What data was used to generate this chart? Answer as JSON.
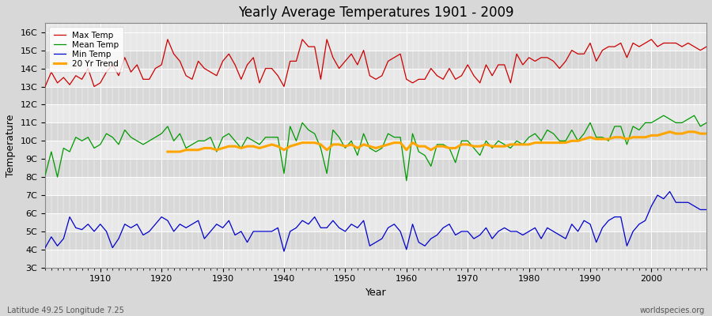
{
  "title": "Yearly Average Temperatures 1901 - 2009",
  "xlabel": "Year",
  "ylabel": "Temperature",
  "lat_lon_label": "Latitude 49.25 Longitude 7.25",
  "worldspecies_label": "worldspecies.org",
  "years": [
    1901,
    1902,
    1903,
    1904,
    1905,
    1906,
    1907,
    1908,
    1909,
    1910,
    1911,
    1912,
    1913,
    1914,
    1915,
    1916,
    1917,
    1918,
    1919,
    1920,
    1921,
    1922,
    1923,
    1924,
    1925,
    1926,
    1927,
    1928,
    1929,
    1930,
    1931,
    1932,
    1933,
    1934,
    1935,
    1936,
    1937,
    1938,
    1939,
    1940,
    1941,
    1942,
    1943,
    1944,
    1945,
    1946,
    1947,
    1948,
    1949,
    1950,
    1951,
    1952,
    1953,
    1954,
    1955,
    1956,
    1957,
    1958,
    1959,
    1960,
    1961,
    1962,
    1963,
    1964,
    1965,
    1966,
    1967,
    1968,
    1969,
    1970,
    1971,
    1972,
    1973,
    1974,
    1975,
    1976,
    1977,
    1978,
    1979,
    1980,
    1981,
    1982,
    1983,
    1984,
    1985,
    1986,
    1987,
    1988,
    1989,
    1990,
    1991,
    1992,
    1993,
    1994,
    1995,
    1996,
    1997,
    1998,
    1999,
    2000,
    2001,
    2002,
    2003,
    2004,
    2005,
    2006,
    2007,
    2008,
    2009
  ],
  "max_temp": [
    13.0,
    13.8,
    13.2,
    13.5,
    13.1,
    13.6,
    13.4,
    14.0,
    13.0,
    13.2,
    13.8,
    14.2,
    13.6,
    14.6,
    13.8,
    14.2,
    13.4,
    13.4,
    14.0,
    14.2,
    15.6,
    14.8,
    14.4,
    13.6,
    13.4,
    14.4,
    14.0,
    13.8,
    13.6,
    14.4,
    14.8,
    14.2,
    13.4,
    14.2,
    14.6,
    13.2,
    14.0,
    14.0,
    13.6,
    13.0,
    14.4,
    14.4,
    15.6,
    15.2,
    15.2,
    13.4,
    15.6,
    14.6,
    14.0,
    14.4,
    14.8,
    14.2,
    15.0,
    13.6,
    13.4,
    13.6,
    14.4,
    14.6,
    14.8,
    13.4,
    13.2,
    13.4,
    13.4,
    14.0,
    13.6,
    13.4,
    14.0,
    13.4,
    13.6,
    14.2,
    13.6,
    13.2,
    14.2,
    13.6,
    14.2,
    14.2,
    13.2,
    14.8,
    14.2,
    14.6,
    14.4,
    14.6,
    14.6,
    14.4,
    14.0,
    14.4,
    15.0,
    14.8,
    14.8,
    15.4,
    14.4,
    15.0,
    15.2,
    15.2,
    15.4,
    14.6,
    15.4,
    15.2,
    15.4,
    15.6,
    15.2,
    15.4,
    15.4,
    15.4,
    15.2,
    15.4,
    15.2,
    15.0,
    15.2
  ],
  "mean_temp": [
    8.1,
    9.4,
    8.0,
    9.6,
    9.4,
    10.2,
    10.0,
    10.2,
    9.6,
    9.8,
    10.4,
    10.2,
    9.8,
    10.6,
    10.2,
    10.0,
    9.8,
    10.0,
    10.2,
    10.4,
    10.8,
    10.0,
    10.4,
    9.6,
    9.8,
    10.0,
    10.0,
    10.2,
    9.4,
    10.2,
    10.4,
    10.0,
    9.6,
    10.2,
    10.0,
    9.8,
    10.2,
    10.2,
    10.2,
    8.2,
    10.8,
    10.0,
    11.0,
    10.6,
    10.4,
    9.6,
    8.2,
    10.6,
    10.2,
    9.6,
    10.0,
    9.2,
    10.4,
    9.6,
    9.4,
    9.6,
    10.4,
    10.2,
    10.2,
    7.8,
    10.4,
    9.4,
    9.2,
    8.6,
    9.8,
    9.8,
    9.6,
    8.8,
    10.0,
    10.0,
    9.6,
    9.2,
    10.0,
    9.6,
    10.0,
    9.8,
    9.6,
    10.0,
    9.8,
    10.2,
    10.4,
    10.0,
    10.6,
    10.4,
    10.0,
    10.0,
    10.6,
    10.0,
    10.4,
    11.0,
    10.2,
    10.2,
    10.0,
    10.8,
    10.8,
    9.8,
    10.8,
    10.6,
    11.0,
    11.0,
    11.2,
    11.4,
    11.2,
    11.0,
    11.0,
    11.2,
    11.4,
    10.8,
    11.0
  ],
  "min_temp": [
    4.1,
    4.7,
    4.2,
    4.6,
    5.8,
    5.2,
    5.1,
    5.4,
    5.0,
    5.4,
    5.0,
    4.1,
    4.6,
    5.4,
    5.2,
    5.4,
    4.8,
    5.0,
    5.4,
    5.8,
    5.6,
    5.0,
    5.4,
    5.2,
    5.4,
    5.6,
    4.6,
    5.0,
    5.4,
    5.2,
    5.6,
    4.8,
    5.0,
    4.4,
    5.0,
    5.0,
    5.0,
    5.0,
    5.2,
    3.9,
    5.0,
    5.2,
    5.6,
    5.4,
    5.8,
    5.2,
    5.2,
    5.6,
    5.2,
    5.0,
    5.4,
    5.2,
    5.6,
    4.2,
    4.4,
    4.6,
    5.2,
    5.4,
    5.0,
    4.0,
    5.4,
    4.4,
    4.2,
    4.6,
    4.8,
    5.2,
    5.4,
    4.8,
    5.0,
    5.0,
    4.6,
    4.8,
    5.2,
    4.6,
    5.0,
    5.2,
    5.0,
    5.0,
    4.8,
    5.0,
    5.2,
    4.6,
    5.2,
    5.0,
    4.8,
    4.6,
    5.4,
    5.0,
    5.6,
    5.4,
    4.4,
    5.2,
    5.6,
    5.8,
    5.8,
    4.2,
    5.0,
    5.4,
    5.6,
    6.4,
    7.0,
    6.8,
    7.2,
    6.6,
    6.6,
    6.6,
    6.4,
    6.2,
    6.2
  ],
  "trend_years": [
    1921,
    1922,
    1923,
    1924,
    1925,
    1926,
    1927,
    1928,
    1929,
    1930,
    1931,
    1932,
    1933,
    1934,
    1935,
    1936,
    1937,
    1938,
    1939,
    1940,
    1941,
    1942,
    1943,
    1944,
    1945,
    1946,
    1947,
    1948,
    1949,
    1950,
    1951,
    1952,
    1953,
    1954,
    1955,
    1956,
    1957,
    1958,
    1959,
    1960,
    1961,
    1962,
    1963,
    1964,
    1965,
    1966,
    1967,
    1968,
    1969,
    1970,
    1971,
    1972,
    1973,
    1974,
    1975,
    1976,
    1977,
    1978,
    1979,
    1980,
    1981,
    1982,
    1983,
    1984,
    1985,
    1986,
    1987,
    1988,
    1989,
    1990,
    1991,
    1992,
    1993,
    1994,
    1995,
    1996,
    1997,
    1998,
    1999,
    2000,
    2001,
    2002,
    2003,
    2004,
    2005,
    2006,
    2007,
    2008,
    2009
  ],
  "trend_temp": [
    9.4,
    9.4,
    9.4,
    9.5,
    9.5,
    9.5,
    9.6,
    9.6,
    9.5,
    9.6,
    9.7,
    9.7,
    9.6,
    9.7,
    9.7,
    9.6,
    9.7,
    9.8,
    9.7,
    9.5,
    9.7,
    9.8,
    9.9,
    9.9,
    9.9,
    9.8,
    9.5,
    9.8,
    9.8,
    9.7,
    9.8,
    9.6,
    9.8,
    9.7,
    9.6,
    9.7,
    9.8,
    9.9,
    9.9,
    9.5,
    9.9,
    9.7,
    9.7,
    9.5,
    9.7,
    9.7,
    9.6,
    9.6,
    9.8,
    9.8,
    9.7,
    9.7,
    9.8,
    9.7,
    9.7,
    9.7,
    9.8,
    9.8,
    9.8,
    9.8,
    9.9,
    9.9,
    9.9,
    9.9,
    9.9,
    9.9,
    10.0,
    10.0,
    10.1,
    10.2,
    10.1,
    10.1,
    10.1,
    10.2,
    10.2,
    10.1,
    10.2,
    10.2,
    10.2,
    10.3,
    10.3,
    10.4,
    10.5,
    10.4,
    10.4,
    10.5,
    10.5,
    10.4,
    10.4
  ],
  "max_color": "#cc0000",
  "mean_color": "#009900",
  "min_color": "#0000cc",
  "trend_color": "#ffa500",
  "fig_bg_color": "#d8d8d8",
  "plot_bg_color": "#e8e8e8",
  "band_color_dark": "#d8d8d8",
  "band_color_light": "#e8e8e8",
  "grid_color": "#ffffff",
  "ytick_labels": [
    "3C",
    "4C",
    "5C",
    "6C",
    "7C",
    "8C",
    "9C",
    "10C",
    "11C",
    "12C",
    "13C",
    "14C",
    "15C",
    "16C"
  ],
  "ytick_values": [
    3,
    4,
    5,
    6,
    7,
    8,
    9,
    10,
    11,
    12,
    13,
    14,
    15,
    16
  ],
  "ylim": [
    3,
    16.5
  ],
  "xlim": [
    1901,
    2009
  ]
}
